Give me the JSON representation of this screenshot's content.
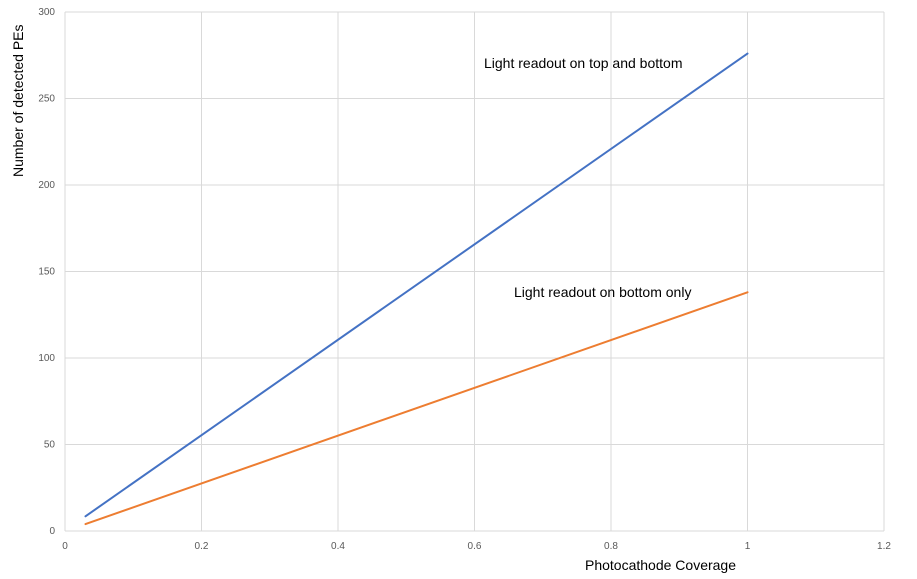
{
  "chart_data": {
    "type": "line",
    "title": "",
    "xlabel": "Photocathode Coverage",
    "ylabel": "Number of detected PEs",
    "xlim": [
      0,
      1.2
    ],
    "ylim": [
      0,
      300
    ],
    "x_ticks": [
      "0",
      "0.2",
      "0.4",
      "0.6",
      "0.8",
      "1",
      "1.2"
    ],
    "y_ticks": [
      "0",
      "50",
      "100",
      "150",
      "200",
      "250",
      "300"
    ],
    "x_tick_values": [
      0,
      0.2,
      0.4,
      0.6,
      0.8,
      1,
      1.2
    ],
    "y_tick_values": [
      0,
      50,
      100,
      150,
      200,
      250,
      300
    ],
    "grid": true,
    "legend": "none",
    "series": [
      {
        "label": "Light readout on top and bottom",
        "color": "#4472c4",
        "x": [
          0.03,
          1
        ],
        "y": [
          8.5,
          276
        ]
      },
      {
        "label": "Light readout on bottom only",
        "color": "#ed7d31",
        "x": [
          0.03,
          1
        ],
        "y": [
          4,
          138
        ]
      }
    ]
  }
}
